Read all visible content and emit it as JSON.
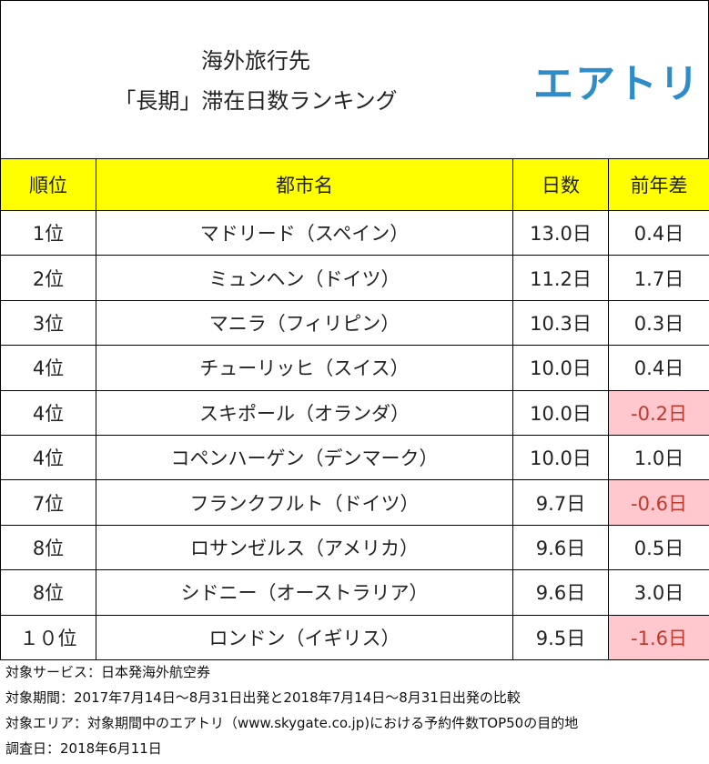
{
  "header": {
    "title": [
      "海外旅行先",
      "「長期」滞在日数ランキング"
    ],
    "logo": "エアトリ"
  },
  "table": {
    "columns": [
      "順位",
      "都市名",
      "日数",
      "前年差"
    ],
    "rows": [
      [
        "1位",
        "マドリード（スペイン）",
        "13.0日",
        "0.4日"
      ],
      [
        "2位",
        "ミュンヘン（ドイツ）",
        "11.2日",
        "1.7日"
      ],
      [
        "3位",
        "マニラ（フィリピン）",
        "10.3日",
        "0.3日"
      ],
      [
        "4位",
        "チューリッヒ（スイス）",
        "10.0日",
        "0.4日"
      ],
      [
        "4位",
        "スキポール（オランダ）",
        "10.0日",
        "-0.2日"
      ],
      [
        "4位",
        "コペンハーゲン（デンマーク）",
        "10.0日",
        "1.0日"
      ],
      [
        "7位",
        "フランクフルト（ドイツ）",
        "9.7日",
        "-0.6日"
      ],
      [
        "8位",
        "ロサンゼルス（アメリカ）",
        "9.6日",
        "0.5日"
      ],
      [
        "8位",
        "シドニー（オーストラリア）",
        "9.6日",
        "3.0日"
      ],
      [
        "１０位",
        "ロンドン（イギリス）",
        "9.5日",
        "-1.6日"
      ]
    ]
  },
  "notes": [
    "対象サービス：日本発海外航空券",
    "対象期間：2017年7月14日～8月31日出発と2018年7月14日～8月31日出発の比較",
    "対象エリア：対象期間中のエアトリ（www.skygate.co.jp)における予約件数TOP50の目的地",
    "調査日：2018年6月11日"
  ]
}
